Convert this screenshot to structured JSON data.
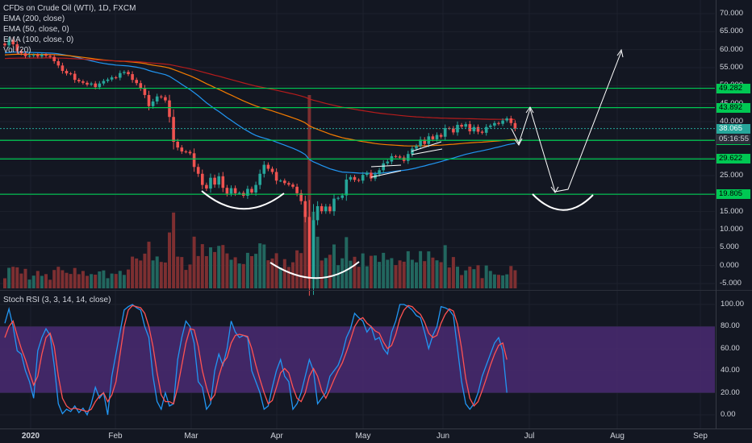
{
  "legend": {
    "title": "CFDs on Crude Oil (WTI), 1D, FXCM",
    "ema200": "EMA (200, close)",
    "ema50": "EMA (50, close, 0)",
    "ema100": "EMA (100, close, 0)",
    "vol": "Vol (20)",
    "stoch": "Stoch RSI (3, 3, 14, 14, close)"
  },
  "colors": {
    "background": "#131722",
    "grid": "#1e222d",
    "up": "#26a69a",
    "down": "#ef5350",
    "vol_up": "#22675f",
    "vol_down": "#7d2f31",
    "ema50": "#2196f3",
    "ema100": "#f57c00",
    "ema200": "#b71c1c",
    "horizontal_level": "#00c853",
    "stoch_k": "#2196f3",
    "stoch_d": "#ff5252",
    "stoch_band": "#4a2a72",
    "current_price_tag": "#26a69a",
    "countdown_tag": "#2a2e39"
  },
  "chart_data": [
    {
      "type": "candlestick",
      "symbol": "CFDs on Crude Oil (WTI)",
      "interval": "1D",
      "source": "FXCM",
      "y_ticks": [
        "70.000",
        "65.000",
        "60.000",
        "55.000",
        "50.000",
        "45.000",
        "40.000",
        "35.000",
        "30.000",
        "25.000",
        "20.000",
        "15.000",
        "10.000",
        "5.000",
        "0.000",
        "-5.000"
      ],
      "x_ticks": [
        "2020",
        "Feb",
        "Mar",
        "Apr",
        "May",
        "Jun",
        "Jul",
        "Aug",
        "Sep"
      ],
      "ylim": [
        -5,
        72
      ],
      "current_price": "38.065",
      "countdown": "05:16:55",
      "levels": [
        "49.282",
        "43.892",
        "34.800",
        "29.622",
        "19.805"
      ],
      "level_values": [
        49.282,
        43.892,
        34.8,
        29.622,
        19.805
      ],
      "daily_closes": [
        61.2,
        62.7,
        61.5,
        59.6,
        59.0,
        58.2,
        58.3,
        58.5,
        58.1,
        58.6,
        58.3,
        58.0,
        56.8,
        55.6,
        54.1,
        53.4,
        53.3,
        51.6,
        51.2,
        50.8,
        50.3,
        50.6,
        49.6,
        50.6,
        51.3,
        51.7,
        52.3,
        52.2,
        53.5,
        53.8,
        53.2,
        51.6,
        50.7,
        49.3,
        47.4,
        44.3,
        45.6,
        47.0,
        46.8,
        45.9,
        41.3,
        34.4,
        32.8,
        31.7,
        31.6,
        31.2,
        27.4,
        25.5,
        22.4,
        21.4,
        24.4,
        22.5,
        24.8,
        21.6,
        20.0,
        21.5,
        20.1,
        20.2,
        19.4,
        21.3,
        20.3,
        22.4,
        25.5,
        28.0,
        26.9,
        26.0,
        23.6,
        23.6,
        22.9,
        22.5,
        21.9,
        20.1,
        17.9,
        13.5,
        -3.7,
        12.6,
        16.5,
        15.1,
        16.4,
        15.1,
        18.6,
        18.8,
        19.5,
        23.9,
        24.6,
        23.8,
        23.6,
        25.2,
        25.8,
        24.2,
        25.4,
        26.5,
        28.4,
        28.9,
        30.4,
        30.3,
        30.0,
        29.1,
        31.0,
        32.5,
        33.2,
        35.0,
        33.8,
        35.9,
        35.1,
        36.3,
        35.8,
        38.2,
        38.1,
        37.0,
        39.1,
        38.6,
        39.3,
        37.3,
        38.5,
        37.2,
        36.9,
        38.5,
        38.9,
        39.6,
        39.4,
        40.3,
        40.9,
        39.6,
        38.1
      ],
      "series": [
        {
          "name": "EMA (50, close, 0)"
        },
        {
          "name": "EMA (100, close, 0)"
        },
        {
          "name": "EMA (200, close)"
        },
        {
          "name": "Vol (20)"
        }
      ]
    },
    {
      "type": "line",
      "title": "Stoch RSI (3, 3, 14, 14, close)",
      "y_ticks": [
        "100.00",
        "80.00",
        "60.00",
        "40.00",
        "20.00",
        "0.00"
      ],
      "ylim": [
        -5,
        105
      ],
      "band": [
        20,
        80
      ],
      "series": [
        {
          "name": "K",
          "values": [
            83,
            96,
            80,
            58,
            55,
            40,
            30,
            15,
            58,
            70,
            78,
            72,
            45,
            10,
            1,
            5,
            3,
            8,
            2,
            6,
            0,
            10,
            25,
            15,
            20,
            0,
            35,
            55,
            75,
            95,
            98,
            100,
            97,
            95,
            80,
            70,
            35,
            12,
            5,
            20,
            8,
            10,
            50,
            70,
            85,
            80,
            65,
            30,
            25,
            5,
            10,
            40,
            55,
            45,
            60,
            85,
            75,
            70,
            72,
            70,
            40,
            30,
            20,
            5,
            8,
            25,
            40,
            50,
            35,
            30,
            5,
            10,
            20,
            35,
            50,
            40,
            10,
            15,
            20,
            35,
            40,
            45,
            55,
            70,
            78,
            92,
            88,
            85,
            75,
            80,
            68,
            70,
            60,
            55,
            75,
            85,
            100,
            100,
            98,
            95,
            90,
            88,
            75,
            60,
            72,
            80,
            98,
            97,
            95,
            90,
            60,
            30,
            10,
            5,
            10,
            20,
            35,
            45,
            55,
            65,
            70,
            58,
            20
          ]
        },
        {
          "name": "D",
          "values": [
            70,
            80,
            85,
            72,
            60,
            50,
            38,
            27,
            35,
            55,
            70,
            74,
            62,
            35,
            15,
            8,
            5,
            6,
            5,
            4,
            3,
            5,
            12,
            17,
            20,
            12,
            18,
            30,
            55,
            80,
            95,
            99,
            98,
            97,
            92,
            80,
            62,
            38,
            18,
            12,
            12,
            10,
            25,
            45,
            65,
            78,
            77,
            62,
            40,
            25,
            13,
            18,
            35,
            47,
            52,
            65,
            72,
            73,
            72,
            71,
            60,
            45,
            32,
            20,
            10,
            13,
            25,
            38,
            42,
            38,
            25,
            15,
            12,
            20,
            35,
            42,
            35,
            22,
            15,
            23,
            32,
            40,
            47,
            57,
            68,
            80,
            86,
            88,
            83,
            80,
            76,
            74,
            66,
            60,
            63,
            73,
            87,
            95,
            99,
            98,
            94,
            91,
            84,
            74,
            70,
            72,
            83,
            91,
            96,
            94,
            82,
            60,
            33,
            15,
            8,
            12,
            22,
            33,
            45,
            55,
            63,
            65,
            50
          ]
        }
      ]
    }
  ]
}
